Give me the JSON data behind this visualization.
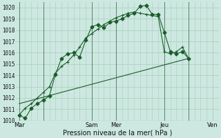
{
  "background_color": "#cce8e0",
  "grid_color": "#aaccbb",
  "line_color": "#1a5c2a",
  "xlabel": "Pression niveau de la mer( hPa )",
  "ylim": [
    1010,
    1020.5
  ],
  "yticks": [
    1010,
    1011,
    1012,
    1013,
    1014,
    1015,
    1016,
    1017,
    1018,
    1019,
    1020
  ],
  "xtick_labels": [
    "Mar",
    "",
    "Sam",
    "Mer",
    "",
    "Jeu",
    "",
    "Ven"
  ],
  "xtick_positions": [
    0,
    4,
    12,
    16,
    20,
    24,
    28,
    32
  ],
  "vlines": [
    0,
    4,
    12,
    16,
    20,
    24,
    28,
    32
  ],
  "series1_x": [
    0,
    1,
    2,
    3,
    4,
    5,
    6,
    7,
    8,
    9,
    10,
    11,
    12,
    13,
    14,
    15,
    16,
    17,
    18,
    19,
    20,
    21,
    22,
    23,
    24,
    25,
    26,
    27,
    28
  ],
  "series1_y": [
    1010.5,
    1010.2,
    1011.1,
    1011.5,
    1011.8,
    1012.2,
    1014.1,
    1015.5,
    1015.9,
    1016.0,
    1015.6,
    1017.1,
    1018.3,
    1018.5,
    1018.2,
    1018.7,
    1018.8,
    1019.0,
    1019.3,
    1019.5,
    1020.1,
    1020.2,
    1019.4,
    1019.4,
    1017.8,
    1016.1,
    1015.9,
    1016.1,
    1015.5
  ],
  "series2_x": [
    0,
    1,
    2,
    3,
    4,
    5,
    6,
    7,
    8,
    9,
    10,
    11,
    12,
    13,
    14,
    15,
    16,
    17,
    18,
    19,
    20,
    21,
    22,
    23,
    24,
    25,
    26,
    27,
    28
  ],
  "series2_y": [
    1010.5,
    1011.1,
    1011.5,
    1012.0,
    1012.5,
    1013.0,
    1014.2,
    1014.8,
    1015.2,
    1015.8,
    1016.5,
    1017.3,
    1017.7,
    1018.1,
    1018.5,
    1018.8,
    1019.1,
    1019.3,
    1019.5,
    1019.6,
    1019.5,
    1019.4,
    1019.3,
    1019.2,
    1016.1,
    1015.9,
    1016.1,
    1016.5,
    1015.5
  ],
  "series3_x": [
    0,
    28
  ],
  "series3_y": [
    1011.5,
    1015.5
  ]
}
